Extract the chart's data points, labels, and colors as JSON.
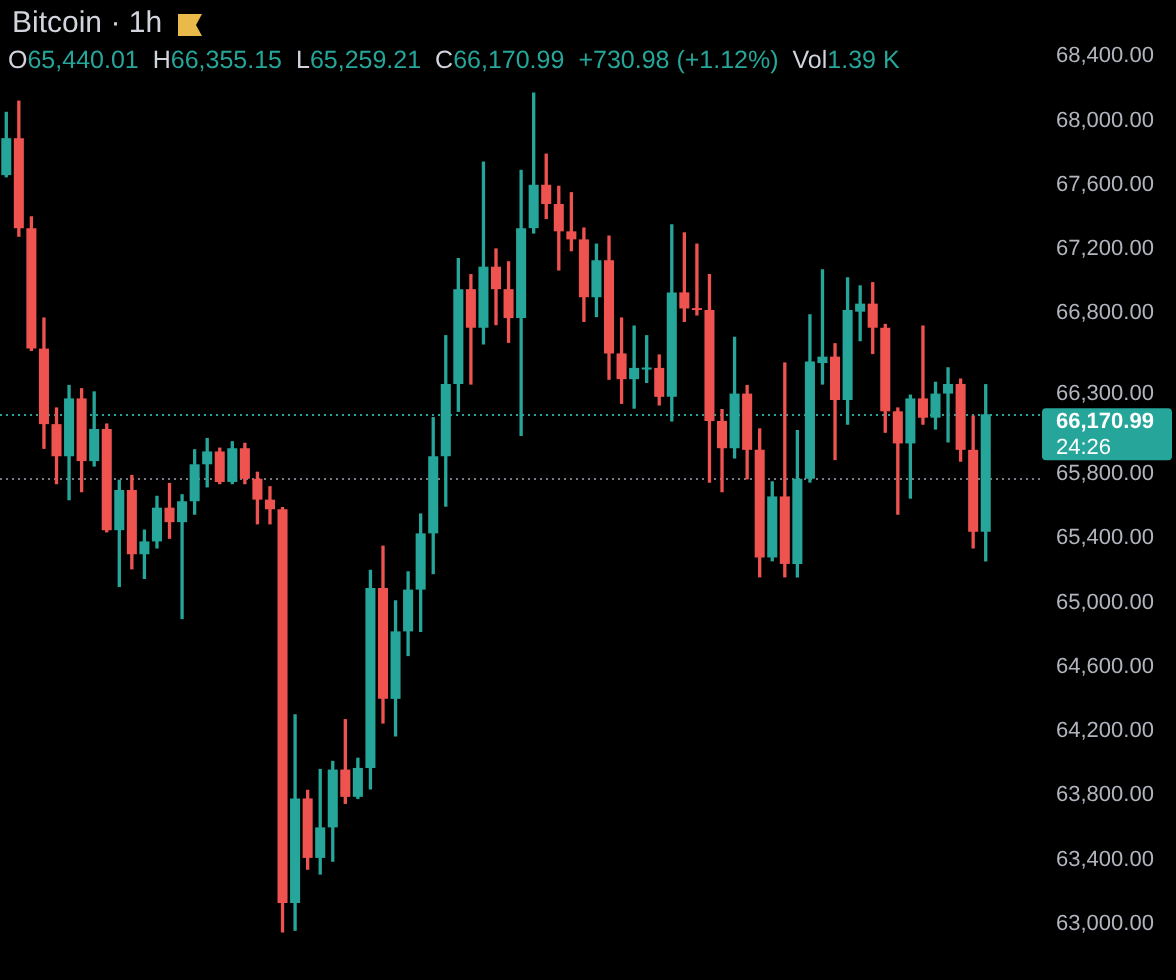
{
  "chart_data": {
    "type": "candlestick",
    "title": "Bitcoin · 1h",
    "annotations": [
      "O65,440.01",
      "H66,355.15",
      "L65,259.21",
      "C66,170.99",
      "+730.98 (+1.12%)",
      "Vol1.39 K",
      "24:26"
    ],
    "categories": [
      null,
      null,
      null,
      null,
      null,
      null,
      null,
      null,
      null,
      null,
      null,
      null,
      null,
      null,
      null,
      null,
      null,
      null,
      null,
      null,
      null,
      null,
      null,
      null,
      null,
      null,
      null,
      null,
      null,
      null,
      null,
      null,
      null,
      null,
      null,
      null,
      null,
      null,
      null,
      null,
      null,
      null,
      null,
      null,
      null,
      null,
      null,
      null,
      null,
      null,
      null,
      null,
      null,
      null,
      null,
      null,
      null,
      null,
      null,
      null,
      null,
      null,
      null,
      null,
      null,
      null,
      null,
      null,
      null,
      null,
      null,
      null,
      null,
      null,
      null,
      null,
      null,
      null,
      null
    ],
    "ohlc": [
      [
        67660,
        68050,
        67650,
        67890
      ],
      [
        67890,
        68120,
        67280,
        67330
      ],
      [
        67330,
        67400,
        66570,
        66580
      ],
      [
        66580,
        66770,
        65960,
        66110
      ],
      [
        66110,
        66210,
        65740,
        65910
      ],
      [
        65910,
        66350,
        65640,
        66270
      ],
      [
        66270,
        66330,
        65690,
        65880
      ],
      [
        65880,
        66310,
        65850,
        66080
      ],
      [
        66080,
        66110,
        65440,
        65450
      ],
      [
        65450,
        65760,
        65100,
        65700
      ],
      [
        65700,
        65790,
        65210,
        65300
      ],
      [
        65300,
        65450,
        65150,
        65380
      ],
      [
        65380,
        65660,
        65340,
        65590
      ],
      [
        65590,
        65740,
        65400,
        65500
      ],
      [
        65500,
        65670,
        64900,
        65630
      ],
      [
        65630,
        65950,
        65550,
        65860
      ],
      [
        65860,
        66020,
        65720,
        65940
      ],
      [
        65940,
        65960,
        65740,
        65750
      ],
      [
        65750,
        66000,
        65740,
        65960
      ],
      [
        65960,
        65990,
        65740,
        65770
      ],
      [
        65770,
        65810,
        65490,
        65640
      ],
      [
        65640,
        65720,
        65490,
        65580
      ],
      [
        65580,
        65590,
        62950,
        63130
      ],
      [
        63130,
        64300,
        62960,
        63780
      ],
      [
        63780,
        63830,
        63340,
        63410
      ],
      [
        63410,
        63960,
        63310,
        63600
      ],
      [
        63600,
        64010,
        63390,
        63960
      ],
      [
        63960,
        64270,
        63750,
        63790
      ],
      [
        63790,
        64030,
        63780,
        63970
      ],
      [
        63970,
        65200,
        63840,
        65090
      ],
      [
        65090,
        65350,
        64250,
        64400
      ],
      [
        64400,
        65010,
        64170,
        64820
      ],
      [
        64820,
        65190,
        64670,
        65080
      ],
      [
        65080,
        65550,
        64820,
        65430
      ],
      [
        65430,
        66150,
        65180,
        65910
      ],
      [
        65910,
        66660,
        65600,
        66360
      ],
      [
        66360,
        67140,
        66190,
        66950
      ],
      [
        66950,
        67040,
        66360,
        66710
      ],
      [
        66710,
        67740,
        66610,
        67090
      ],
      [
        67090,
        67200,
        66730,
        66950
      ],
      [
        66950,
        67120,
        66620,
        66770
      ],
      [
        66770,
        67690,
        66040,
        67330
      ],
      [
        67330,
        68170,
        67300,
        67600
      ],
      [
        67600,
        67790,
        67390,
        67480
      ],
      [
        67480,
        67590,
        67070,
        67310
      ],
      [
        67310,
        67550,
        67190,
        67260
      ],
      [
        67260,
        67330,
        66750,
        66900
      ],
      [
        66900,
        67230,
        66780,
        67130
      ],
      [
        67130,
        67280,
        66390,
        66550
      ],
      [
        66550,
        66770,
        66240,
        66390
      ],
      [
        66390,
        66720,
        66210,
        66460
      ],
      [
        66450,
        66660,
        66370,
        66460
      ],
      [
        66460,
        66540,
        66230,
        66280
      ],
      [
        66280,
        67350,
        66130,
        66930
      ],
      [
        66930,
        67300,
        66750,
        66830
      ],
      [
        66830,
        67230,
        66790,
        66820
      ],
      [
        66820,
        67040,
        65750,
        66130
      ],
      [
        66130,
        66200,
        65690,
        65960
      ],
      [
        65960,
        66650,
        65900,
        66300
      ],
      [
        66300,
        66350,
        65770,
        65950
      ],
      [
        65950,
        66080,
        65160,
        65280
      ],
      [
        65280,
        65750,
        65260,
        65660
      ],
      [
        65660,
        66490,
        65160,
        65240
      ],
      [
        65240,
        66070,
        65160,
        65770
      ],
      [
        65770,
        66790,
        65750,
        66500
      ],
      [
        66490,
        67070,
        66360,
        66530
      ],
      [
        66530,
        66610,
        65890,
        66260
      ],
      [
        66260,
        67020,
        66110,
        66820
      ],
      [
        66810,
        66970,
        66630,
        66860
      ],
      [
        66860,
        66990,
        66550,
        66710
      ],
      [
        66710,
        66730,
        66060,
        66190
      ],
      [
        66190,
        66210,
        65550,
        65990
      ],
      [
        65990,
        66290,
        65650,
        66270
      ],
      [
        66270,
        66720,
        66110,
        66150
      ],
      [
        66150,
        66370,
        66080,
        66300
      ],
      [
        66300,
        66460,
        66000,
        66360
      ],
      [
        66360,
        66390,
        65880,
        65950
      ],
      [
        65950,
        66160,
        65340,
        65440
      ],
      [
        65440.01,
        66355.15,
        65259.21,
        66170.99
      ]
    ],
    "colors": [
      "#26a69a",
      "#ef5350",
      "#ef5350",
      "#ef5350",
      "#ef5350",
      "#26a69a",
      "#ef5350",
      "#26a69a",
      "#ef5350",
      "#26a69a",
      "#ef5350",
      "#26a69a",
      "#26a69a",
      "#ef5350",
      "#26a69a",
      "#26a69a",
      "#26a69a",
      "#ef5350",
      "#26a69a",
      "#ef5350",
      "#ef5350",
      "#ef5350",
      "#ef5350",
      "#26a69a",
      "#ef5350",
      "#26a69a",
      "#26a69a",
      "#ef5350",
      "#26a69a",
      "#26a69a",
      "#ef5350",
      "#26a69a",
      "#26a69a",
      "#26a69a",
      "#26a69a",
      "#26a69a",
      "#26a69a",
      "#ef5350",
      "#26a69a",
      "#ef5350",
      "#ef5350",
      "#26a69a",
      "#26a69a",
      "#ef5350",
      "#ef5350",
      "#ef5350",
      "#ef5350",
      "#26a69a",
      "#ef5350",
      "#ef5350",
      "#26a69a",
      "#26a69a",
      "#ef5350",
      "#26a69a",
      "#ef5350",
      "#ef5350",
      "#ef5350",
      "#ef5350",
      "#26a69a",
      "#ef5350",
      "#ef5350",
      "#26a69a",
      "#ef5350",
      "#26a69a",
      "#26a69a",
      "#26a69a",
      "#ef5350",
      "#26a69a",
      "#26a69a",
      "#ef5350",
      "#ef5350",
      "#ef5350",
      "#26a69a",
      "#ef5350",
      "#26a69a",
      "#26a69a",
      "#ef5350",
      "#ef5350",
      "#26a69a"
    ],
    "ylim": [
      62650,
      68750
    ],
    "yticks": [
      {
        "value": 68400,
        "label": "68,400.00"
      },
      {
        "value": 68000,
        "label": "68,000.00"
      },
      {
        "value": 67600,
        "label": "67,600.00"
      },
      {
        "value": 67200,
        "label": "67,200.00"
      },
      {
        "value": 66800,
        "label": "66,800.00"
      },
      {
        "value": 66300,
        "label": "66,300.00"
      },
      {
        "value": 65800,
        "label": "65,800.00"
      },
      {
        "value": 65400,
        "label": "65,400.00"
      },
      {
        "value": 65000,
        "label": "65,000.00"
      },
      {
        "value": 64600,
        "label": "64,600.00"
      },
      {
        "value": 64200,
        "label": "64,200.00"
      },
      {
        "value": 63800,
        "label": "63,800.00"
      },
      {
        "value": 63400,
        "label": "63,400.00"
      },
      {
        "value": 63000,
        "label": "63,000.00"
      }
    ],
    "ref_lines": [
      {
        "axis": "y",
        "value": 66170.99,
        "label": "66,170.99",
        "color": "#26a69a",
        "line_style": "dotted"
      },
      {
        "axis": "y",
        "value": 65770,
        "color": "#787b86",
        "line_style": "dotted"
      }
    ],
    "tick_labels": "y"
  }
}
